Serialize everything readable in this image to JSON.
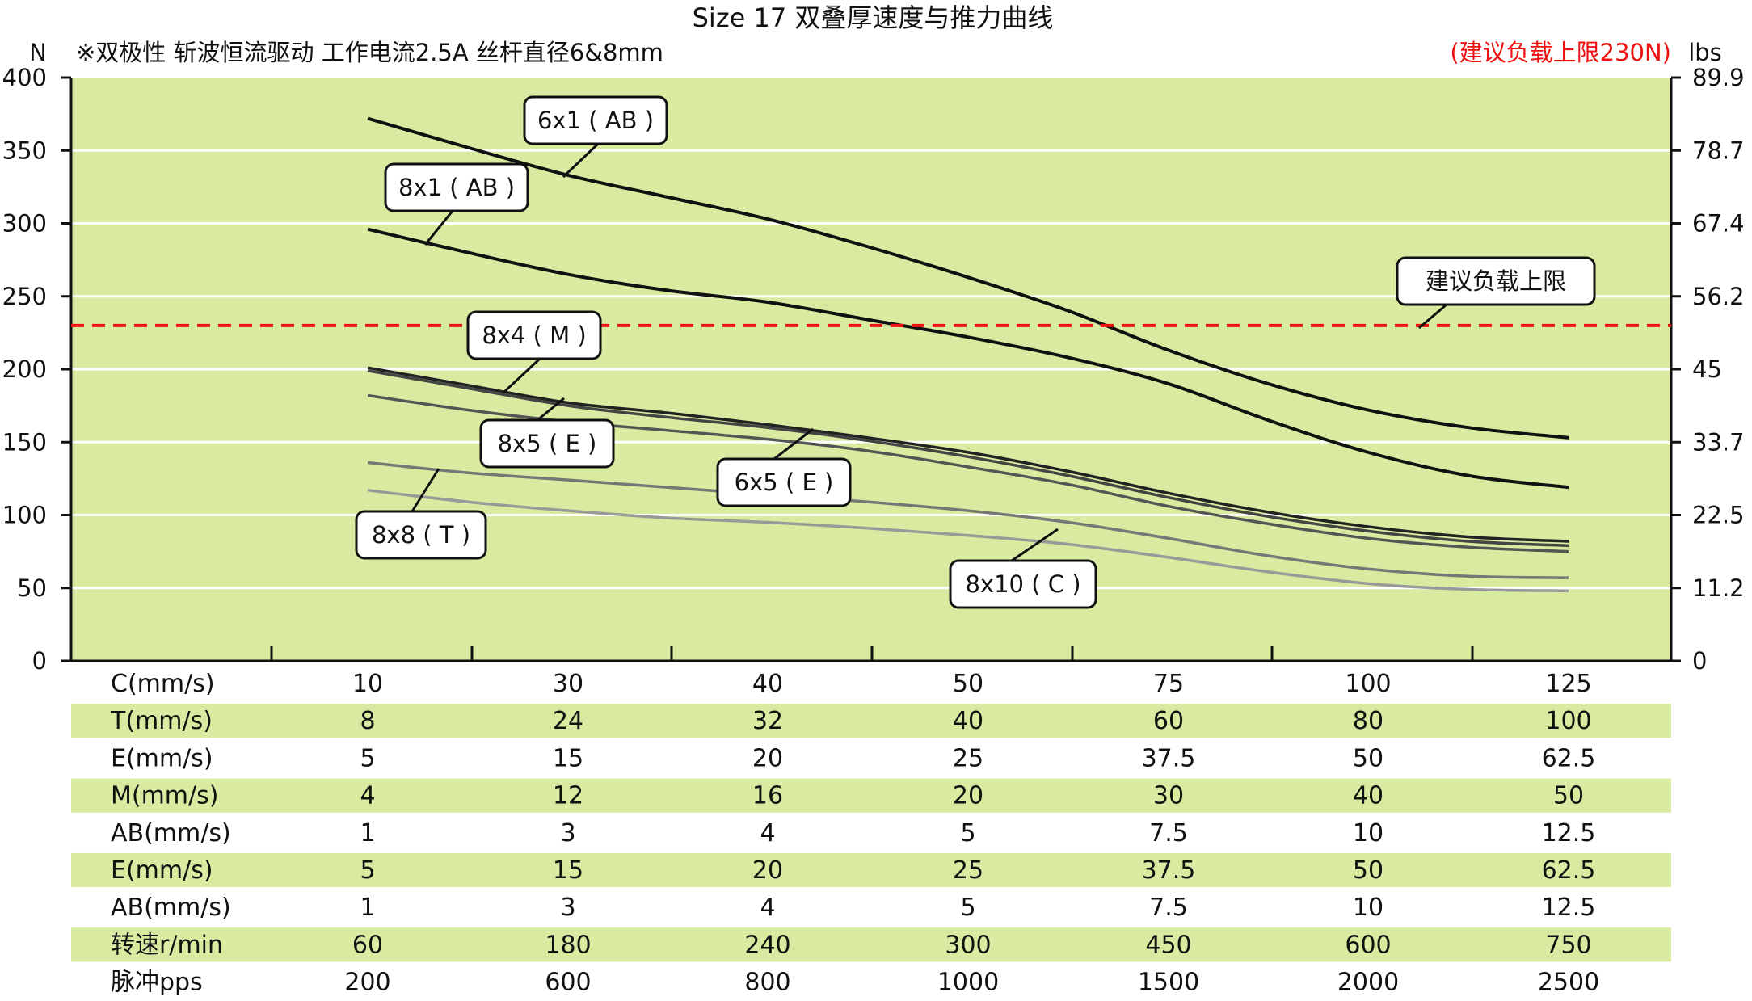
{
  "chart_data": {
    "type": "line",
    "title": "Size 17 双叠厚速度与推力曲线",
    "subtitle": "※双极性 斩波恒流驱动 工作电流2.5A 丝杆直径6&8mm",
    "limit_note": "(建议负载上限230N)",
    "ylabel_left": "N",
    "ylabel_right": "lbs",
    "ylim": [
      0,
      400
    ],
    "yticks_left": [
      "0",
      "50",
      "100",
      "150",
      "200",
      "250",
      "300",
      "350",
      "400"
    ],
    "yticks_right": [
      "0",
      "11.2",
      "22.5",
      "33.7",
      "45",
      "56.2",
      "67.4",
      "78.7",
      "89.9"
    ],
    "grid": true,
    "x_categories": [
      "10",
      "30",
      "40",
      "50",
      "75",
      "100",
      "125"
    ],
    "limit_line": {
      "value": 230,
      "label": "建议负载上限",
      "color": "#ee1111"
    },
    "colors": {
      "plot_bg": "#d9eba0",
      "band_bg": "#d9eba0",
      "grid": "#ffffff",
      "axis": "#111111"
    },
    "series": [
      {
        "name": "6x1 ( AB )",
        "color": "#111111",
        "x": [
          0,
          0.5,
          1,
          1.5,
          2,
          2.5,
          3,
          3.5,
          4,
          4.5,
          5,
          5.5,
          6
        ],
        "values": [
          372,
          352,
          333,
          318,
          303,
          284,
          263,
          240,
          213,
          190,
          172,
          160,
          153
        ]
      },
      {
        "name": "8x1 ( AB )",
        "color": "#111111",
        "x": [
          0,
          0.5,
          1,
          1.5,
          2,
          2.5,
          3,
          3.5,
          4,
          4.5,
          5,
          5.5,
          6
        ],
        "values": [
          296,
          280,
          265,
          254,
          246,
          234,
          222,
          208,
          190,
          165,
          143,
          127,
          119
        ]
      },
      {
        "name": "8x4 ( M )",
        "color": "#222222",
        "x": [
          0,
          0.5,
          1,
          1.5,
          2,
          2.5,
          3,
          3.5,
          4,
          4.5,
          5,
          5.5,
          6
        ],
        "values": [
          201,
          189,
          177,
          170,
          162,
          153,
          143,
          130,
          115,
          102,
          92,
          85,
          82
        ]
      },
      {
        "name": "6x5 ( E )",
        "color": "#444444",
        "x": [
          0,
          0.5,
          1,
          1.5,
          2,
          2.5,
          3,
          3.5,
          4,
          4.5,
          5,
          5.5,
          6
        ],
        "values": [
          199,
          187,
          175,
          167,
          160,
          151,
          140,
          127,
          112,
          99,
          89,
          82,
          79
        ]
      },
      {
        "name": "8x5 ( E )",
        "color": "#555555",
        "x": [
          0,
          0.5,
          1,
          1.5,
          2,
          2.5,
          3,
          3.5,
          4,
          4.5,
          5,
          5.5,
          6
        ],
        "values": [
          182,
          172,
          164,
          158,
          152,
          144,
          133,
          121,
          106,
          94,
          84,
          78,
          75
        ]
      },
      {
        "name": "8x8 ( T )",
        "color": "#777777",
        "x": [
          0,
          0.5,
          1,
          1.5,
          2,
          2.5,
          3,
          3.5,
          4,
          4.5,
          5,
          5.5,
          6
        ],
        "values": [
          136,
          129,
          124,
          119,
          114,
          109,
          103,
          95,
          84,
          72,
          63,
          58,
          57
        ]
      },
      {
        "name": "8x10 ( C )",
        "color": "#999999",
        "x": [
          0,
          0.5,
          1,
          1.5,
          2,
          2.5,
          3,
          3.5,
          4,
          4.5,
          5,
          5.5,
          6
        ],
        "values": [
          117,
          109,
          103,
          98,
          95,
          91,
          86,
          80,
          71,
          61,
          53,
          49,
          48
        ]
      }
    ],
    "table": [
      {
        "label": "C(mm/s)",
        "values": [
          "10",
          "30",
          "40",
          "50",
          "75",
          "100",
          "125"
        ],
        "shaded": false
      },
      {
        "label": "T(mm/s)",
        "values": [
          "8",
          "24",
          "32",
          "40",
          "60",
          "80",
          "100"
        ],
        "shaded": true
      },
      {
        "label": "E(mm/s)",
        "values": [
          "5",
          "15",
          "20",
          "25",
          "37.5",
          "50",
          "62.5"
        ],
        "shaded": false
      },
      {
        "label": "M(mm/s)",
        "values": [
          "4",
          "12",
          "16",
          "20",
          "30",
          "40",
          "50"
        ],
        "shaded": true
      },
      {
        "label": "AB(mm/s)",
        "values": [
          "1",
          "3",
          "4",
          "5",
          "7.5",
          "10",
          "12.5"
        ],
        "shaded": false
      },
      {
        "label": "E(mm/s)",
        "values": [
          "5",
          "15",
          "20",
          "25",
          "37.5",
          "50",
          "62.5"
        ],
        "shaded": true
      },
      {
        "label": "AB(mm/s)",
        "values": [
          "1",
          "3",
          "4",
          "5",
          "7.5",
          "10",
          "12.5"
        ],
        "shaded": false
      },
      {
        "label": "转速r/min",
        "values": [
          "60",
          "180",
          "240",
          "300",
          "450",
          "600",
          "750"
        ],
        "shaded": true
      },
      {
        "label": "脉冲pps",
        "values": [
          "200",
          "600",
          "800",
          "1000",
          "1500",
          "2000",
          "2500"
        ],
        "shaded": false
      }
    ]
  }
}
